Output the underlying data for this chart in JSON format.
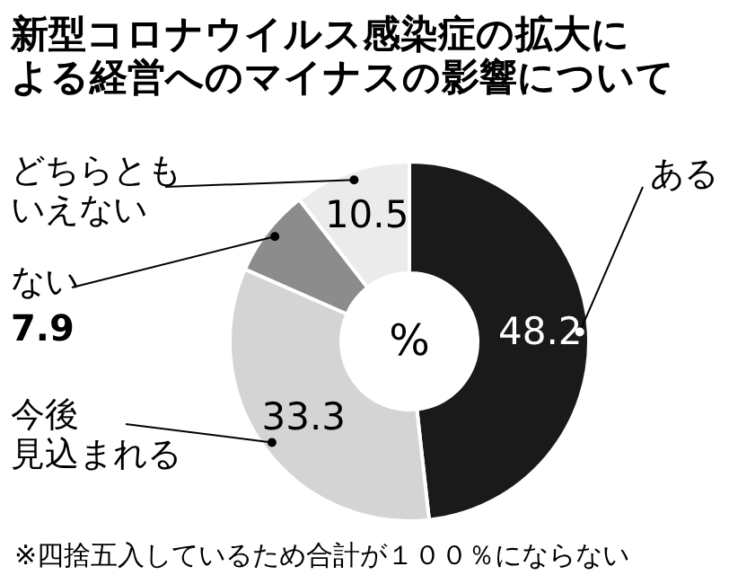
{
  "chart_data": {
    "type": "donut",
    "title": "新型コロナウイルス感染症の拡大による経営へのマイナスの影響について",
    "categories": [
      "ある",
      "今後見込まれる",
      "ない",
      "どちらともいえない"
    ],
    "values": [
      48.2,
      33.3,
      7.9,
      10.5
    ],
    "colors": [
      "#1a1a1a",
      "#d4d4d4",
      "#8c8c8c",
      "#ebebeb"
    ],
    "data_labels": true,
    "annotations": [
      "%",
      "※四捨五入しているため合計が１００％にならない"
    ]
  }
}
